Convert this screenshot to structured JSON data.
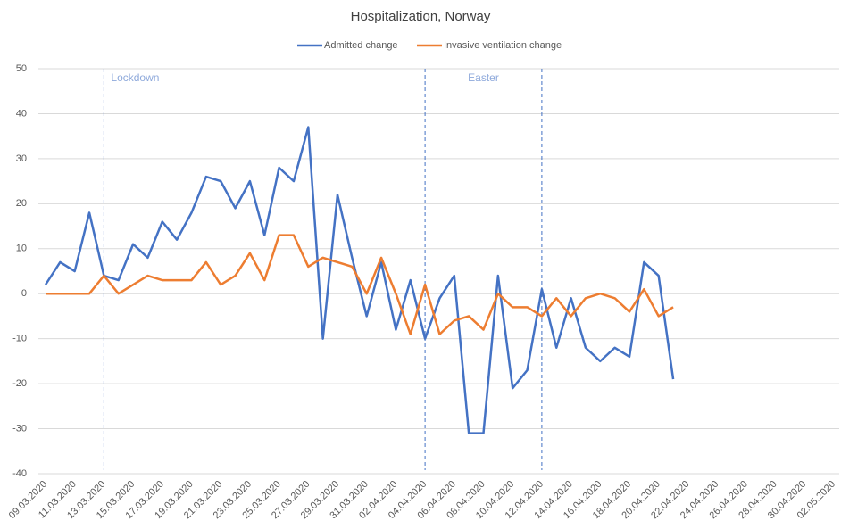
{
  "chart_data": {
    "type": "line",
    "title": "Hospitalization, Norway",
    "categories": [
      "09.03.2020",
      null,
      "11.03.2020",
      null,
      "13.03.2020",
      null,
      "15.03.2020",
      null,
      "17.03.2020",
      null,
      "19.03.2020",
      null,
      "21.03.2020",
      null,
      "23.03.2020",
      null,
      "25.03.2020",
      null,
      "27.03.2020",
      null,
      "29.03.2020",
      null,
      "31.03.2020",
      null,
      "02.04.2020",
      null,
      "04.04.2020",
      null,
      "06.04.2020",
      null,
      "08.04.2020",
      null,
      "10.04.2020",
      null,
      "12.04.2020",
      null,
      "14.04.2020",
      null,
      "16.04.2020",
      null,
      "18.04.2020",
      null,
      "20.04.2020",
      null,
      "22.04.2020",
      null,
      "24.04.2020",
      null,
      "26.04.2020",
      null,
      "28.04.2020",
      null,
      "30.04.2020",
      null,
      "02.05.2020"
    ],
    "series": [
      {
        "name": "Admitted change",
        "color": "#4472c4",
        "values": [
          2,
          7,
          5,
          18,
          4,
          3,
          11,
          8,
          16,
          12,
          18,
          26,
          25,
          19,
          25,
          13,
          28,
          25,
          37,
          -10,
          22,
          8,
          -5,
          7,
          -8,
          3,
          -10,
          -1,
          4,
          -31,
          -31,
          4,
          -21,
          -17,
          1,
          -12,
          -1,
          -12,
          -15,
          -12,
          -14,
          7,
          4,
          -19,
          null,
          null,
          null,
          null,
          null,
          null,
          null,
          null,
          null,
          null,
          null
        ]
      },
      {
        "name": "Invasive ventilation change",
        "color": "#ed7d31",
        "values": [
          0,
          0,
          0,
          0,
          4,
          0,
          2,
          4,
          3,
          3,
          3,
          7,
          2,
          4,
          9,
          3,
          13,
          13,
          6,
          8,
          7,
          6,
          0,
          8,
          0,
          -9,
          2,
          -9,
          -6,
          -5,
          -8,
          0,
          -3,
          -3,
          -5,
          -1,
          -5,
          -1,
          0,
          -1,
          -4,
          1,
          -5,
          -3,
          null,
          null,
          null,
          null,
          null,
          null,
          null,
          null,
          null,
          null,
          null
        ]
      }
    ],
    "ylim": [
      -40,
      50
    ],
    "yticks": [
      -40,
      -30,
      -20,
      -10,
      0,
      10,
      20,
      30,
      40,
      50
    ],
    "grid": true,
    "legend": "top",
    "vlines": [
      4,
      26,
      34
    ],
    "annotations": [
      {
        "text": "Lockdown",
        "x": 4
      },
      {
        "text": "Easter",
        "x": 30
      }
    ]
  }
}
